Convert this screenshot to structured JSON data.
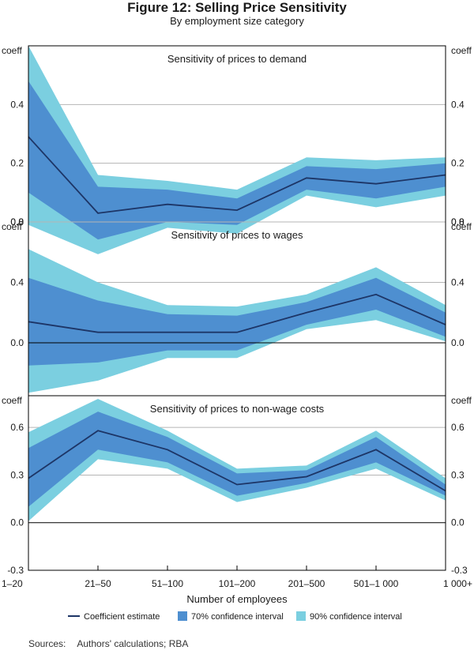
{
  "figure": {
    "title": "Figure 12: Selling Price Sensitivity",
    "subtitle": "By employment size category",
    "sources_label": "Sources:",
    "sources_text": "Authors' calculations; RBA"
  },
  "colors": {
    "ci90": "#7bcfe0",
    "ci70": "#4e8fd0",
    "line": "#1d3566",
    "axis": "#000000",
    "grid": "#b5b5b5"
  },
  "chart_data": {
    "type": "area",
    "xlabel": "Number of employees",
    "categories": [
      "1–20",
      "21–50",
      "51–100",
      "101–200",
      "201–500",
      "501–1 000",
      "1 000+"
    ],
    "legend": {
      "estimate": "Coefficient estimate",
      "ci70": "70% confidence interval",
      "ci90": "90% confidence interval"
    },
    "panels": [
      {
        "title": "Sensitivity of prices to demand",
        "unit": "coeff",
        "ylim": [
          0,
          0.6
        ],
        "ticks": [
          0.4,
          0.2,
          0.0
        ],
        "tick_labels": [
          "0.4",
          "0.2",
          "0.0"
        ],
        "estimate": [
          0.29,
          0.03,
          0.06,
          0.04,
          0.15,
          0.13,
          0.16
        ],
        "ci70_low": [
          0.1,
          -0.06,
          0.0,
          -0.01,
          0.11,
          0.08,
          0.12
        ],
        "ci70_high": [
          0.48,
          0.12,
          0.11,
          0.08,
          0.19,
          0.18,
          0.2
        ],
        "ci90_low": [
          -0.01,
          -0.11,
          -0.02,
          -0.04,
          0.09,
          0.05,
          0.09
        ],
        "ci90_high": [
          0.6,
          0.16,
          0.14,
          0.11,
          0.22,
          0.21,
          0.22
        ]
      },
      {
        "title": "Sensitivity of prices to wages",
        "unit": "coeff",
        "ylim": [
          -0.35,
          0.8
        ],
        "ticks": [
          0.8,
          0.4,
          0.0
        ],
        "tick_labels": [
          "0.8",
          "0.4",
          "0.0"
        ],
        "estimate": [
          0.14,
          0.07,
          0.07,
          0.07,
          0.2,
          0.32,
          0.12
        ],
        "ci70_low": [
          -0.15,
          -0.13,
          -0.05,
          -0.05,
          0.12,
          0.22,
          0.04
        ],
        "ci70_high": [
          0.43,
          0.28,
          0.19,
          0.18,
          0.27,
          0.43,
          0.2
        ],
        "ci90_low": [
          -0.33,
          -0.25,
          -0.1,
          -0.1,
          0.09,
          0.15,
          0.01
        ],
        "ci90_high": [
          0.62,
          0.4,
          0.25,
          0.24,
          0.32,
          0.5,
          0.25
        ]
      },
      {
        "title": "Sensitivity of prices to non-wage costs",
        "unit": "coeff",
        "ylim": [
          -0.3,
          0.8
        ],
        "ticks": [
          0.6,
          0.3,
          0.0,
          -0.3
        ],
        "tick_labels": [
          "0.6",
          "0.3",
          "0.0",
          "-0.3"
        ],
        "estimate": [
          0.28,
          0.58,
          0.46,
          0.24,
          0.29,
          0.46,
          0.2
        ],
        "ci70_low": [
          0.1,
          0.46,
          0.38,
          0.17,
          0.25,
          0.38,
          0.17
        ],
        "ci70_high": [
          0.47,
          0.7,
          0.54,
          0.31,
          0.33,
          0.54,
          0.24
        ],
        "ci90_low": [
          0.01,
          0.4,
          0.34,
          0.13,
          0.22,
          0.34,
          0.14
        ],
        "ci90_high": [
          0.57,
          0.78,
          0.58,
          0.34,
          0.36,
          0.58,
          0.28
        ]
      }
    ]
  }
}
